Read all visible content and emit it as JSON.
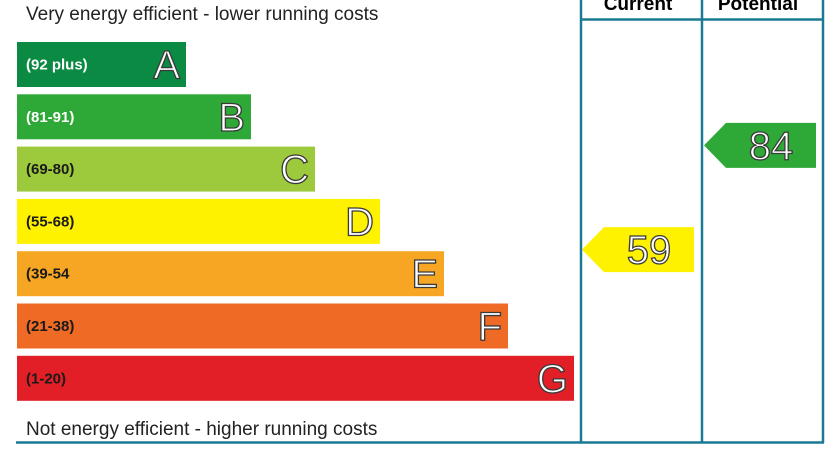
{
  "chart_data": {
    "type": "bar",
    "top_caption": "Very energy efficient - lower running costs",
    "bottom_caption": "Not energy efficient - higher running costs",
    "columns": [
      "Current",
      "Potential"
    ],
    "bands": [
      {
        "letter": "A",
        "range": "(92 plus)",
        "color": "#0b8a44",
        "range_text_color": "#ffffff"
      },
      {
        "letter": "B",
        "range": "(81-91)",
        "color": "#2ea836",
        "range_text_color": "#ffffff"
      },
      {
        "letter": "C",
        "range": "(69-80)",
        "color": "#9cca3c",
        "range_text_color": "#1a1a1a"
      },
      {
        "letter": "D",
        "range": "(55-68)",
        "color": "#fff200",
        "range_text_color": "#1a1a1a"
      },
      {
        "letter": "E",
        "range": "(39-54",
        "color": "#f6a623",
        "range_text_color": "#1a1a1a"
      },
      {
        "letter": "F",
        "range": "(21-38)",
        "color": "#ee6a25",
        "range_text_color": "#1a1a1a"
      },
      {
        "letter": "G",
        "range": "(1-20)",
        "color": "#e21e26",
        "range_text_color": "#1a1a1a"
      }
    ],
    "ratings": [
      {
        "column": "Current",
        "value": 59,
        "band": "D",
        "color": "#fff200"
      },
      {
        "column": "Potential",
        "value": 84,
        "band": "B",
        "color": "#2ea836"
      }
    ],
    "grid_color": "#1b7a93"
  }
}
